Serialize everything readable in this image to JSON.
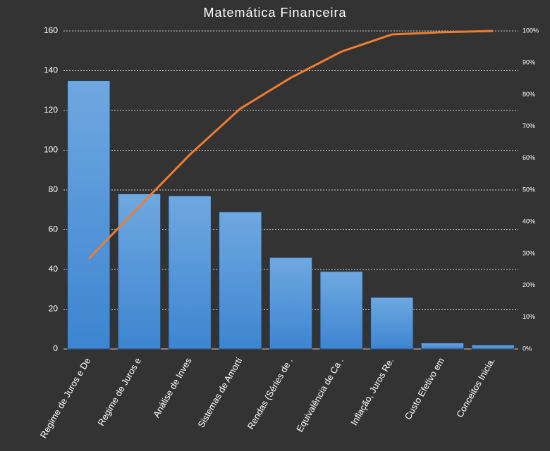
{
  "chart_data": {
    "type": "bar",
    "title": "Matemática Financeira",
    "categories": [
      "Regime de Juros e De",
      "Regime de Juros e",
      "Análise de Inves",
      "Sistemas de Amorti",
      "Rendas (Séries de .",
      "Equivalência de Ca .",
      "Inflação, Juros Re.",
      "Custo Efetivo em",
      "Conceitos Inicia."
    ],
    "series": [
      {
        "type": "bar",
        "color": "#4a90d9",
        "values": [
          135,
          78,
          77,
          69,
          46,
          39,
          26,
          3,
          2
        ]
      },
      {
        "type": "line",
        "axis": "y2",
        "color": "#ed7d31",
        "values": [
          28.4,
          44.8,
          61.1,
          75.6,
          85.3,
          93.5,
          98.9,
          99.6,
          100
        ]
      }
    ],
    "ylim": [
      0,
      160
    ],
    "yticks": [
      0,
      20,
      40,
      60,
      80,
      100,
      120,
      140,
      160
    ],
    "y2lim": [
      0,
      100
    ],
    "y2ticks": [
      {
        "value": 0,
        "label": "0%"
      },
      {
        "value": 10,
        "label": "10%"
      },
      {
        "value": 20,
        "label": "20%"
      },
      {
        "value": 30,
        "label": "30%"
      },
      {
        "value": 40,
        "label": "40%"
      },
      {
        "value": 50,
        "label": "50%"
      },
      {
        "value": 60,
        "label": "60%"
      },
      {
        "value": 70,
        "label": "70%"
      },
      {
        "value": 80,
        "label": "80%"
      },
      {
        "value": 90,
        "label": "90%"
      },
      {
        "value": 100,
        "label": "100%"
      }
    ],
    "grid": true
  }
}
